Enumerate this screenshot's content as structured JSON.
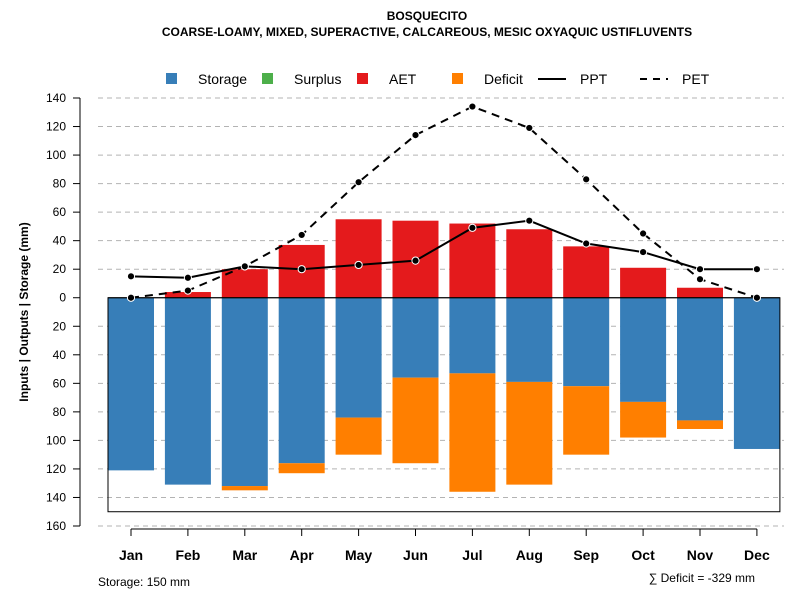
{
  "chart_data": {
    "type": "bar",
    "title": "BOSQUECITO",
    "subtitle": "COARSE-LOAMY, MIXED, SUPERACTIVE, CALCAREOUS, MESIC OXYAQUIC USTIFLUVENTS",
    "ylabel": "Inputs | Outputs | Storage    (mm)",
    "xlabel": "",
    "ylim": [
      -160,
      140
    ],
    "yticks": [
      140,
      120,
      100,
      80,
      60,
      40,
      20,
      0,
      -20,
      -40,
      -60,
      -80,
      -100,
      -120,
      -140,
      -160
    ],
    "categories": [
      "Jan",
      "Feb",
      "Mar",
      "Apr",
      "May",
      "Jun",
      "Jul",
      "Aug",
      "Sep",
      "Oct",
      "Nov",
      "Dec"
    ],
    "legend": {
      "position": "top",
      "entries": [
        {
          "label": "Storage",
          "kind": "box",
          "color": "#377EB8"
        },
        {
          "label": "Surplus",
          "kind": "box",
          "color": "#4DAF4A"
        },
        {
          "label": "AET",
          "kind": "box",
          "color": "#E41A1C"
        },
        {
          "label": "Deficit",
          "kind": "box",
          "color": "#FF7F00"
        },
        {
          "label": "PPT",
          "kind": "solid"
        },
        {
          "label": "PET",
          "kind": "dashed"
        }
      ]
    },
    "series": [
      {
        "name": "AET",
        "color": "#E41A1C",
        "values": [
          0,
          4,
          20,
          37,
          55,
          54,
          52,
          48,
          36,
          21,
          7,
          0
        ]
      },
      {
        "name": "Surplus",
        "color": "#4DAF4A",
        "values": [
          0,
          0,
          0,
          0,
          0,
          0,
          0,
          0,
          0,
          0,
          0,
          0
        ]
      },
      {
        "name": "Storage",
        "color": "#377EB8",
        "values": [
          121,
          131,
          132,
          116,
          84,
          56,
          53,
          59,
          62,
          73,
          86,
          106
        ]
      },
      {
        "name": "Deficit",
        "color": "#FF7F00",
        "values": [
          0,
          0,
          3,
          7,
          26,
          60,
          83,
          72,
          48,
          25,
          6,
          0
        ]
      },
      {
        "name": "PPT",
        "values": [
          15,
          14,
          22,
          20,
          23,
          26,
          49,
          54,
          38,
          32,
          20,
          20
        ]
      },
      {
        "name": "PET",
        "values": [
          0,
          5,
          22,
          44,
          81,
          114,
          134,
          119,
          83,
          45,
          13,
          0
        ]
      }
    ],
    "storage_capacity": 150,
    "footnote_left": "Storage: 150 mm",
    "footnote_right": "∑ Deficit = -329 mm"
  }
}
